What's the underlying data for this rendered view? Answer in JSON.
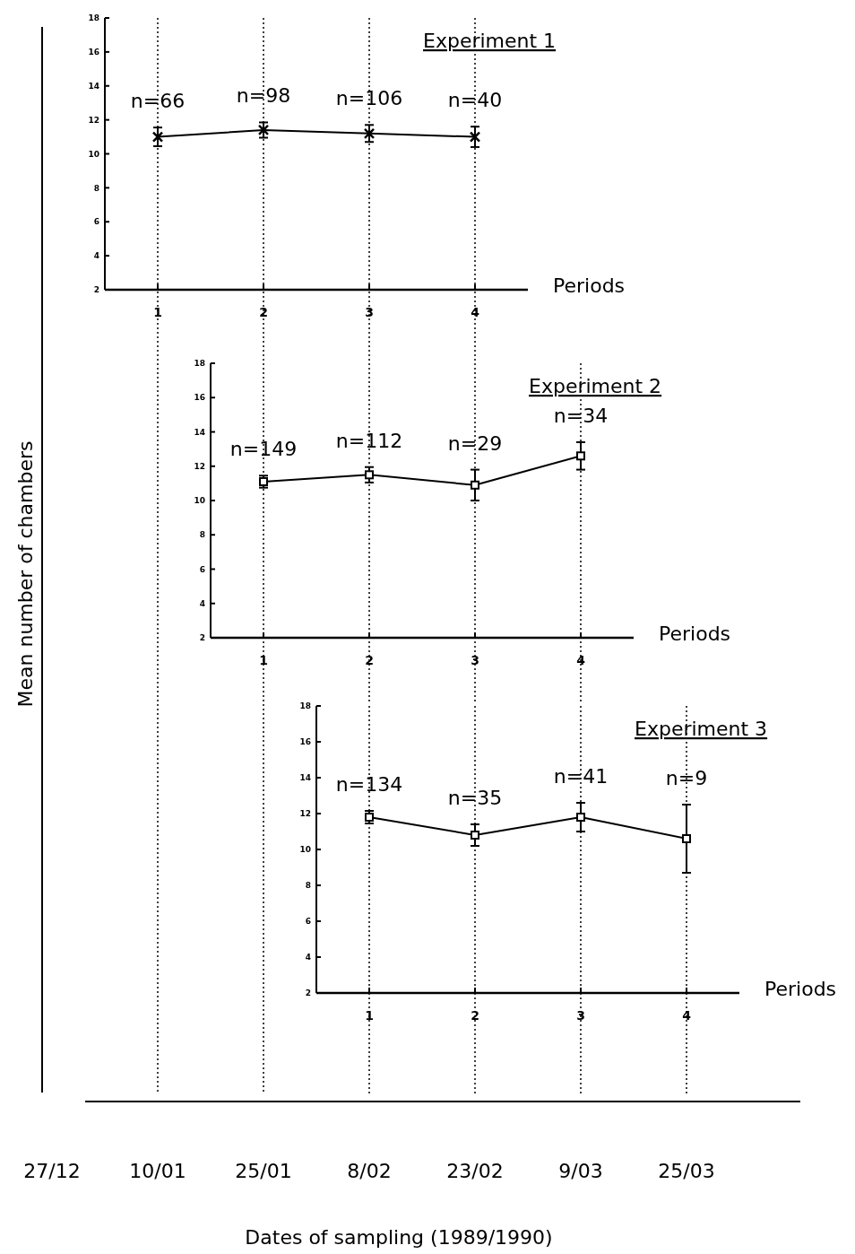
{
  "chart_data": [
    {
      "type": "line",
      "title": "Experiment 1",
      "xlabel": "Periods",
      "x": [
        1,
        2,
        3,
        4
      ],
      "xlim": [
        0.5,
        4.5
      ],
      "xticks": [
        1,
        2,
        3,
        4
      ],
      "ylim": [
        2,
        18
      ],
      "yticks": [
        2,
        4,
        6,
        8,
        10,
        12,
        14,
        16,
        18
      ],
      "marker": "cross",
      "color": "#000000",
      "values": [
        11.0,
        11.4,
        11.2,
        11.0
      ],
      "errors": [
        0.55,
        0.45,
        0.5,
        0.6
      ],
      "ref_lines": [
        {
          "axis": "x",
          "value": 1,
          "line_style": "dotted"
        },
        {
          "axis": "x",
          "value": 2,
          "line_style": "dotted"
        },
        {
          "axis": "x",
          "value": 3,
          "line_style": "dotted"
        },
        {
          "axis": "x",
          "value": 4,
          "line_style": "dotted"
        }
      ],
      "annotations": [
        {
          "text": "n=66",
          "x": 1,
          "y": 11.0
        },
        {
          "text": "n=98",
          "x": 2,
          "y": 11.4
        },
        {
          "text": "n=106",
          "x": 3,
          "y": 11.2
        },
        {
          "text": "n=40",
          "x": 4,
          "y": 11.0
        }
      ]
    },
    {
      "type": "line",
      "title": "Experiment 2",
      "xlabel": "Periods",
      "x": [
        1,
        2,
        3,
        4
      ],
      "xlim": [
        0.5,
        4.5
      ],
      "xticks": [
        1,
        2,
        3,
        4
      ],
      "ylim": [
        2,
        18
      ],
      "yticks": [
        2,
        4,
        6,
        8,
        10,
        12,
        14,
        16,
        18
      ],
      "marker": "square",
      "color": "#000000",
      "values": [
        11.1,
        11.5,
        10.9,
        12.6
      ],
      "errors": [
        0.35,
        0.45,
        0.9,
        0.8
      ],
      "ref_lines": [
        {
          "axis": "x",
          "value": 1,
          "line_style": "dotted"
        },
        {
          "axis": "x",
          "value": 2,
          "line_style": "dotted"
        },
        {
          "axis": "x",
          "value": 3,
          "line_style": "dotted"
        },
        {
          "axis": "x",
          "value": 4,
          "line_style": "dotted"
        }
      ],
      "annotations": [
        {
          "text": "n=149",
          "x": 1,
          "y": 11.1
        },
        {
          "text": "n=112",
          "x": 2,
          "y": 11.5
        },
        {
          "text": "n=29",
          "x": 3,
          "y": 10.9
        },
        {
          "text": "n=34",
          "x": 4,
          "y": 12.6
        }
      ]
    },
    {
      "type": "line",
      "title": "Experiment 3",
      "xlabel": "Periods",
      "x": [
        1,
        2,
        3,
        4
      ],
      "xlim": [
        0.5,
        4.5
      ],
      "xticks": [
        1,
        2,
        3,
        4
      ],
      "ylim": [
        2,
        18
      ],
      "yticks": [
        2,
        4,
        6,
        8,
        10,
        12,
        14,
        16,
        18
      ],
      "marker": "square",
      "color": "#000000",
      "values": [
        11.8,
        10.8,
        11.8,
        10.6
      ],
      "errors": [
        0.35,
        0.6,
        0.8,
        1.9
      ],
      "ref_lines": [
        {
          "axis": "x",
          "value": 1,
          "line_style": "dotted"
        },
        {
          "axis": "x",
          "value": 2,
          "line_style": "dotted"
        },
        {
          "axis": "x",
          "value": 3,
          "line_style": "dotted"
        },
        {
          "axis": "x",
          "value": 4,
          "line_style": "dotted"
        }
      ],
      "annotations": [
        {
          "text": "n=134",
          "x": 1,
          "y": 11.8
        },
        {
          "text": "n=35",
          "x": 2,
          "y": 10.8
        },
        {
          "text": "n=41",
          "x": 3,
          "y": 11.8
        },
        {
          "text": "n=9",
          "x": 4,
          "y": 10.6
        }
      ]
    },
    {
      "type": "other",
      "xlabel": "Dates of sampling (1989/1990)",
      "ylabel": "Mean number of chambers",
      "categories": [
        "27/12",
        "10/01",
        "25/01",
        "8/02",
        "23/02",
        "9/03",
        "25/03"
      ]
    }
  ]
}
